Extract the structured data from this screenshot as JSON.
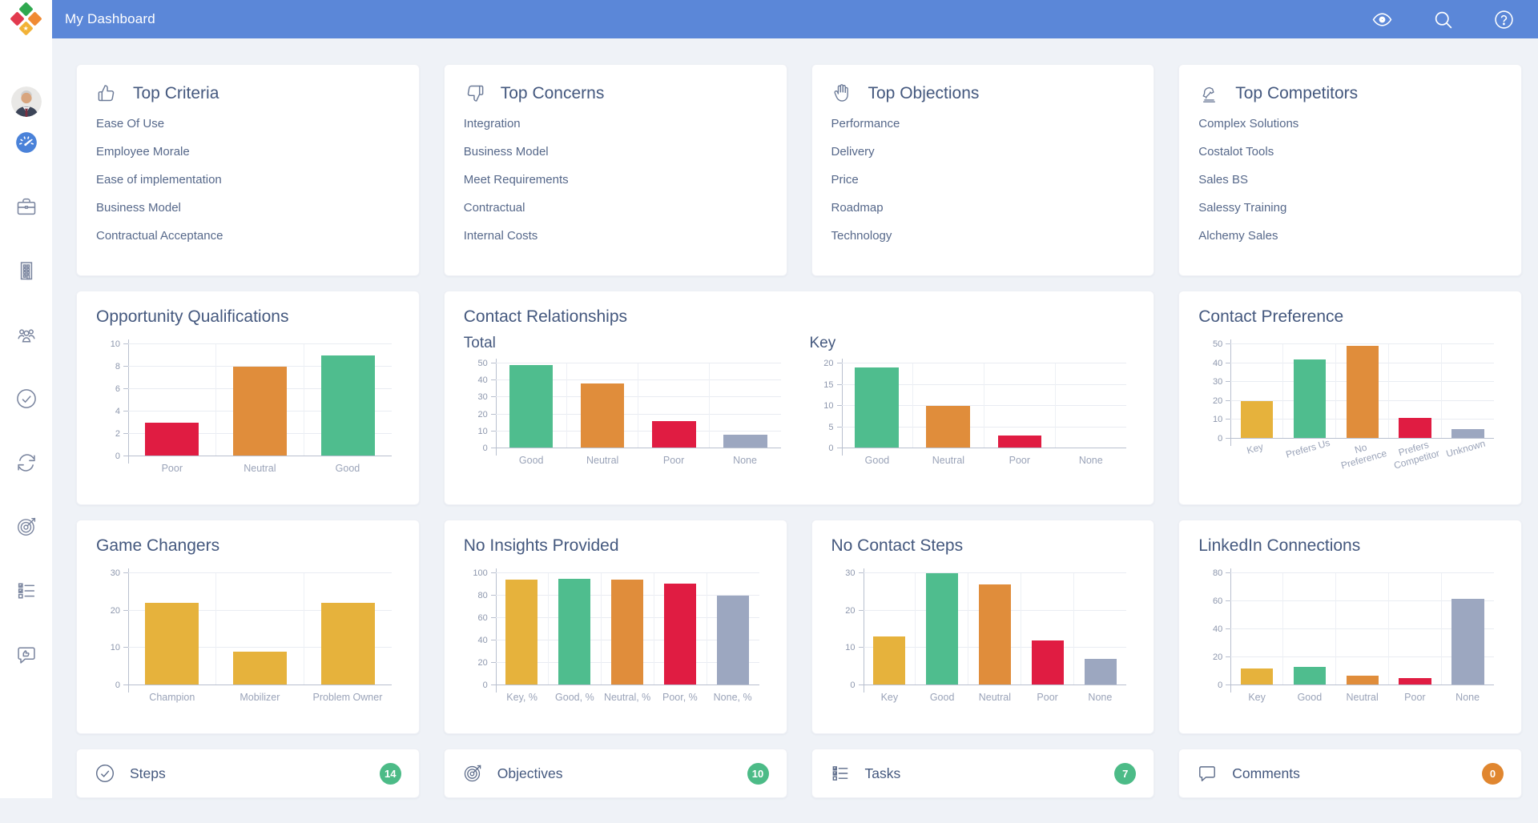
{
  "colors": {
    "green": "#4fbd8e",
    "orange": "#e08d3b",
    "red": "#e01c42",
    "yellow": "#e6b23c",
    "gray": "#9ca7c0",
    "header_blue": "#5b87d8",
    "accent_blue": "#4a82d9",
    "badge_green": "#4cbb87",
    "badge_orange": "#e0862f"
  },
  "header": {
    "title": "My Dashboard",
    "icons": [
      "eye-icon",
      "search-icon",
      "help-icon"
    ]
  },
  "sidebar": {
    "icons": [
      "user-avatar",
      "dashboard-gauge-icon",
      "briefcase-icon",
      "building-icon",
      "users-icon",
      "check-circle-icon",
      "sync-icon",
      "target-icon",
      "checklist-icon",
      "feedback-icon"
    ]
  },
  "lists": {
    "top_criteria": {
      "title": "Top Criteria",
      "icon": "thumbs-up-icon",
      "items": [
        "Ease Of Use",
        "Employee Morale",
        "Ease of implementation",
        "Business Model",
        "Contractual Acceptance"
      ]
    },
    "top_concerns": {
      "title": "Top Concerns",
      "icon": "thumbs-down-icon",
      "items": [
        "Integration",
        "Business Model",
        "Meet Requirements",
        "Contractual",
        "Internal Costs"
      ]
    },
    "top_objections": {
      "title": "Top Objections",
      "icon": "hand-icon",
      "items": [
        "Performance",
        "Delivery",
        "Price",
        "Roadmap",
        "Technology"
      ]
    },
    "top_competitors": {
      "title": "Top Competitors",
      "icon": "knight-icon",
      "items": [
        "Complex Solutions",
        "Costalot Tools",
        "Sales BS",
        "Salessy Training",
        "Alchemy Sales"
      ]
    }
  },
  "panels": {
    "opportunity_qualifications": {
      "title": "Opportunity Qualifications"
    },
    "contact_relationships": {
      "title": "Contact Relationships",
      "subtitle_total": "Total",
      "subtitle_key": "Key"
    },
    "contact_preference": {
      "title": "Contact Preference"
    },
    "game_changers": {
      "title": "Game Changers"
    },
    "no_insights_provided": {
      "title": "No Insights Provided"
    },
    "no_contact_steps": {
      "title": "No Contact Steps"
    },
    "linkedin_connections": {
      "title": "LinkedIn Connections"
    }
  },
  "chart_data": [
    {
      "id": "opportunity_qualifications",
      "type": "bar",
      "title": "Opportunity Qualifications",
      "categories": [
        "Poor",
        "Neutral",
        "Good"
      ],
      "values": [
        3,
        8,
        9
      ],
      "colors": [
        "red",
        "orange",
        "green"
      ],
      "ylim": [
        0,
        10
      ],
      "yticks": [
        0,
        2,
        4,
        6,
        8,
        10
      ],
      "xlabel": "",
      "ylabel": "",
      "grid": true,
      "legend": "none"
    },
    {
      "id": "cr_total",
      "type": "bar",
      "title": "Contact Relationships - Total",
      "categories": [
        "Good",
        "Neutral",
        "Poor",
        "None"
      ],
      "values": [
        49,
        38,
        16,
        8
      ],
      "colors": [
        "green",
        "orange",
        "red",
        "gray"
      ],
      "ylim": [
        0,
        50
      ],
      "yticks": [
        0,
        10,
        20,
        30,
        40,
        50
      ],
      "xlabel": "",
      "ylabel": "",
      "grid": true,
      "legend": "none"
    },
    {
      "id": "cr_key",
      "type": "bar",
      "title": "Contact Relationships - Key",
      "categories": [
        "Good",
        "Neutral",
        "Poor",
        "None"
      ],
      "values": [
        19,
        10,
        3,
        0
      ],
      "colors": [
        "green",
        "orange",
        "red",
        "gray"
      ],
      "ylim": [
        0,
        20
      ],
      "yticks": [
        0,
        5,
        10,
        15,
        20
      ],
      "xlabel": "",
      "ylabel": "",
      "grid": true,
      "legend": "none"
    },
    {
      "id": "contact_preference",
      "type": "bar",
      "title": "Contact Preference",
      "categories": [
        "Key",
        "Prefers Us",
        "No Preference",
        "Prefers Competitor",
        "Unknown"
      ],
      "values": [
        20,
        42,
        49,
        11,
        5
      ],
      "colors": [
        "yellow",
        "green",
        "orange",
        "red",
        "gray"
      ],
      "ylim": [
        0,
        50
      ],
      "yticks": [
        0,
        10,
        20,
        30,
        40,
        50
      ],
      "angled_labels": true,
      "xlabel": "",
      "ylabel": "",
      "grid": true,
      "legend": "none"
    },
    {
      "id": "game_changers",
      "type": "bar",
      "title": "Game Changers",
      "categories": [
        "Champion",
        "Mobilizer",
        "Problem Owner"
      ],
      "values": [
        22,
        9,
        22
      ],
      "colors": [
        "yellow",
        "yellow",
        "yellow"
      ],
      "ylim": [
        0,
        30
      ],
      "yticks": [
        0,
        10,
        20,
        30
      ],
      "xlabel": "",
      "ylabel": "",
      "grid": true,
      "legend": "none"
    },
    {
      "id": "no_insights_provided",
      "type": "bar",
      "title": "No Insights Provided",
      "categories": [
        "Key, %",
        "Good, %",
        "Neutral, %",
        "Poor, %",
        "None, %"
      ],
      "values": [
        94,
        95,
        94,
        91,
        80
      ],
      "colors": [
        "yellow",
        "green",
        "orange",
        "red",
        "gray"
      ],
      "ylim": [
        0,
        100
      ],
      "yticks": [
        0,
        20,
        40,
        60,
        80,
        100
      ],
      "xlabel": "",
      "ylabel": "",
      "grid": true,
      "legend": "none"
    },
    {
      "id": "no_contact_steps",
      "type": "bar",
      "title": "No Contact Steps",
      "categories": [
        "Key",
        "Good",
        "Neutral",
        "Poor",
        "None"
      ],
      "values": [
        13,
        30,
        27,
        12,
        7
      ],
      "colors": [
        "yellow",
        "green",
        "orange",
        "red",
        "gray"
      ],
      "ylim": [
        0,
        30
      ],
      "yticks": [
        0,
        10,
        20,
        30
      ],
      "xlabel": "",
      "ylabel": "",
      "grid": true,
      "legend": "none"
    },
    {
      "id": "linkedin_connections",
      "type": "bar",
      "title": "LinkedIn Connections",
      "categories": [
        "Key",
        "Good",
        "Neutral",
        "Poor",
        "None"
      ],
      "values": [
        12,
        13,
        7,
        5,
        62
      ],
      "colors": [
        "yellow",
        "green",
        "orange",
        "red",
        "gray"
      ],
      "ylim": [
        0,
        80
      ],
      "yticks": [
        0,
        20,
        40,
        60,
        80
      ],
      "xlabel": "",
      "ylabel": "",
      "grid": true,
      "legend": "none"
    }
  ],
  "stats": {
    "items": [
      {
        "label": "Steps",
        "count": "14",
        "icon": "check-circle-icon",
        "badge_color": "badge_green"
      },
      {
        "label": "Objectives",
        "count": "10",
        "icon": "target-icon",
        "badge_color": "badge_green"
      },
      {
        "label": "Tasks",
        "count": "7",
        "icon": "checklist-icon",
        "badge_color": "badge_green"
      },
      {
        "label": "Comments",
        "count": "0",
        "icon": "comment-icon",
        "badge_color": "badge_orange"
      }
    ]
  }
}
